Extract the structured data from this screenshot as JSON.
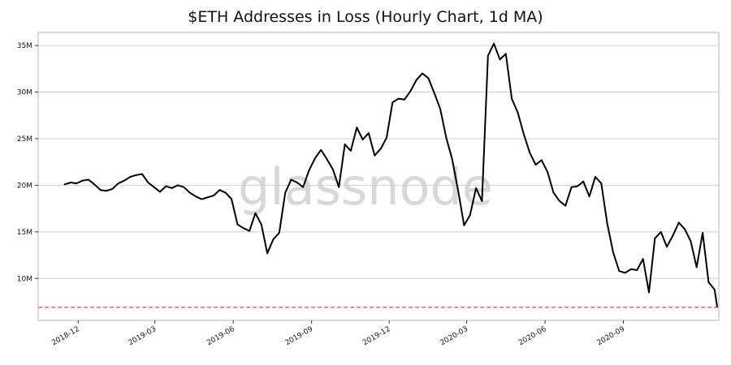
{
  "chart_data": {
    "type": "line",
    "title": "$ETH Addresses in Loss (Hourly Chart, 1d MA)",
    "xlabel": "",
    "ylabel": "",
    "watermark": "glassnode",
    "grid": "horizontal",
    "line_color": "#000000",
    "ylim": [
      5500000,
      36400000
    ],
    "xlim": [
      "2018-10-15",
      "2020-12-22"
    ],
    "yticks": [
      {
        "value": 10000000,
        "label": "10M"
      },
      {
        "value": 15000000,
        "label": "15M"
      },
      {
        "value": 20000000,
        "label": "20M"
      },
      {
        "value": 25000000,
        "label": "25M"
      },
      {
        "value": 30000000,
        "label": "30M"
      },
      {
        "value": 35000000,
        "label": "35M"
      }
    ],
    "xticks": [
      {
        "date": "2018-12-01",
        "label": "2018-12"
      },
      {
        "date": "2019-03-01",
        "label": "2019-03"
      },
      {
        "date": "2019-06-01",
        "label": "2019-06"
      },
      {
        "date": "2019-09-01",
        "label": "2019-09"
      },
      {
        "date": "2019-12-01",
        "label": "2019-12"
      },
      {
        "date": "2020-03-01",
        "label": "2020-03"
      },
      {
        "date": "2020-06-01",
        "label": "2020-06"
      },
      {
        "date": "2020-09-01",
        "label": "2020-09"
      }
    ],
    "reference_line": {
      "value": 6900000,
      "color": "#e03030",
      "style": "dashed"
    },
    "series": [
      {
        "x": [
          "2018-11-15",
          "2018-11-22",
          "2018-11-29",
          "2018-12-06",
          "2018-12-13",
          "2018-12-20",
          "2018-12-27",
          "2019-01-03",
          "2019-01-10",
          "2019-01-17",
          "2019-01-24",
          "2019-01-31",
          "2019-02-07",
          "2019-02-14",
          "2019-02-21",
          "2019-02-28",
          "2019-03-07",
          "2019-03-14",
          "2019-03-21",
          "2019-03-28",
          "2019-04-04",
          "2019-04-11",
          "2019-04-18",
          "2019-04-25",
          "2019-05-02",
          "2019-05-09",
          "2019-05-16",
          "2019-05-23",
          "2019-05-30",
          "2019-06-06",
          "2019-06-13",
          "2019-06-20",
          "2019-06-27",
          "2019-07-04",
          "2019-07-11",
          "2019-07-18",
          "2019-07-25",
          "2019-08-01",
          "2019-08-08",
          "2019-08-15",
          "2019-08-22",
          "2019-08-29",
          "2019-09-05",
          "2019-09-12",
          "2019-09-19",
          "2019-09-26",
          "2019-10-03",
          "2019-10-10",
          "2019-10-17",
          "2019-10-24",
          "2019-10-31",
          "2019-11-07",
          "2019-11-14",
          "2019-11-21",
          "2019-11-28",
          "2019-12-05",
          "2019-12-12",
          "2019-12-19",
          "2019-12-26",
          "2020-01-02",
          "2020-01-09",
          "2020-01-16",
          "2020-01-23",
          "2020-01-30",
          "2020-02-06",
          "2020-02-13",
          "2020-02-20",
          "2020-02-27",
          "2020-03-05",
          "2020-03-12",
          "2020-03-19",
          "2020-03-26",
          "2020-04-02",
          "2020-04-09",
          "2020-04-16",
          "2020-04-23",
          "2020-04-30",
          "2020-05-07",
          "2020-05-14",
          "2020-05-21",
          "2020-05-28",
          "2020-06-04",
          "2020-06-11",
          "2020-06-18",
          "2020-06-25",
          "2020-07-02",
          "2020-07-09",
          "2020-07-16",
          "2020-07-23",
          "2020-07-30",
          "2020-08-06",
          "2020-08-13",
          "2020-08-20",
          "2020-08-27",
          "2020-09-03",
          "2020-09-10",
          "2020-09-17",
          "2020-09-24",
          "2020-10-01",
          "2020-10-08",
          "2020-10-15",
          "2020-10-22",
          "2020-10-29",
          "2020-11-05",
          "2020-11-12",
          "2020-11-19",
          "2020-11-26",
          "2020-12-03",
          "2020-12-10",
          "2020-12-17",
          "2020-12-20"
        ],
        "values": [
          20100000,
          20300000,
          20200000,
          20500000,
          20600000,
          20100000,
          19500000,
          19400000,
          19600000,
          20200000,
          20500000,
          20900000,
          21100000,
          21200000,
          20300000,
          19800000,
          19300000,
          19900000,
          19700000,
          20000000,
          19800000,
          19200000,
          18800000,
          18500000,
          18700000,
          18900000,
          19500000,
          19200000,
          18500000,
          15800000,
          15400000,
          15100000,
          17000000,
          15800000,
          12700000,
          14200000,
          14900000,
          19200000,
          20600000,
          20300000,
          19800000,
          21600000,
          22900000,
          23800000,
          22800000,
          21700000,
          19800000,
          24400000,
          23700000,
          26200000,
          24900000,
          25600000,
          23200000,
          23900000,
          25100000,
          28900000,
          29300000,
          29200000,
          30100000,
          31300000,
          32000000,
          31500000,
          29900000,
          28200000,
          25100000,
          22800000,
          19400000,
          15700000,
          16800000,
          19700000,
          18300000,
          33900000,
          35200000,
          33500000,
          34100000,
          29300000,
          27800000,
          25500000,
          23500000,
          22200000,
          22700000,
          21400000,
          19200000,
          18300000,
          17800000,
          19800000,
          19900000,
          20400000,
          18800000,
          20900000,
          20200000,
          15900000,
          12800000,
          10800000,
          10600000,
          11000000,
          10900000,
          12100000,
          8500000,
          14300000,
          15000000,
          13400000,
          14600000,
          16000000,
          15300000,
          14000000,
          11200000,
          14900000,
          9600000,
          8800000,
          7000000
        ]
      }
    ]
  }
}
